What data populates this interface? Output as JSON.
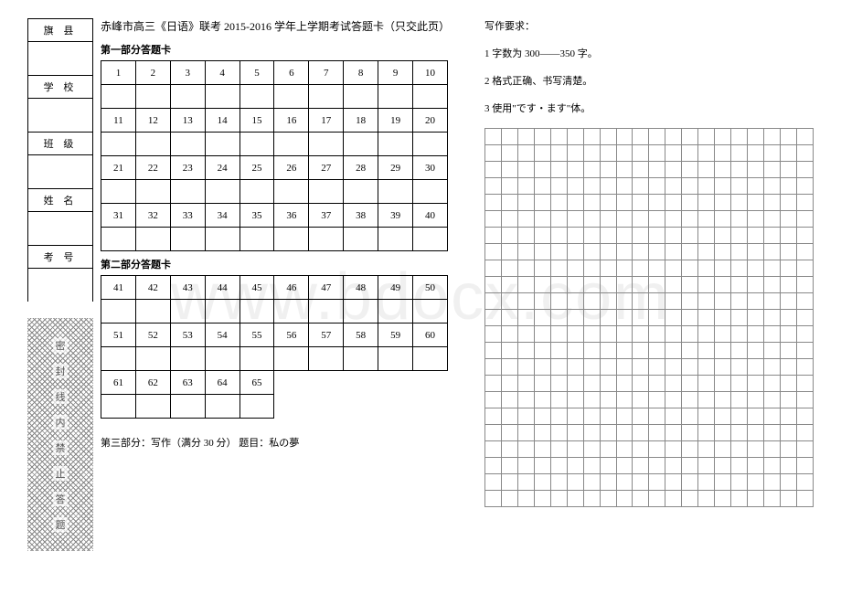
{
  "watermark": "www.bdocx.com",
  "info_labels": [
    "旗  县",
    "学  校",
    "班  级",
    "姓  名",
    "考  号"
  ],
  "seal_chars": [
    "密",
    "封",
    "线",
    "内",
    "禁",
    "止",
    "答",
    "题"
  ],
  "title": "赤峰市高三《日语》联考 2015-2016 学年上学期考试答题卡（只交此页）",
  "section1_label": "第一部分答题卡",
  "section2_label": "第二部分答题卡",
  "section1_numbers": [
    [
      "1",
      "2",
      "3",
      "4",
      "5",
      "6",
      "7",
      "8",
      "9",
      "10"
    ],
    [
      "11",
      "12",
      "13",
      "14",
      "15",
      "16",
      "17",
      "18",
      "19",
      "20"
    ],
    [
      "21",
      "22",
      "23",
      "24",
      "25",
      "26",
      "27",
      "28",
      "29",
      "30"
    ],
    [
      "31",
      "32",
      "33",
      "34",
      "35",
      "36",
      "37",
      "38",
      "39",
      "40"
    ]
  ],
  "section2_numbers": [
    [
      "41",
      "42",
      "43",
      "44",
      "45",
      "46",
      "47",
      "48",
      "49",
      "50"
    ],
    [
      "51",
      "52",
      "53",
      "54",
      "55",
      "56",
      "57",
      "58",
      "59",
      "60"
    ],
    [
      "61",
      "62",
      "63",
      "64",
      "65"
    ]
  ],
  "part3_text": "第三部分：写作（满分 30 分）   题目：私の夢",
  "req_title": "写作要求：",
  "req1": "1 字数为 300——350 字。",
  "req2": "2 格式正确、书写清楚。",
  "req3": "3 使用\"です・ます\"体。",
  "grid_rows": 23,
  "grid_cols": 20,
  "colors": {
    "border": "#000000",
    "grid_border": "#888888",
    "background": "#ffffff",
    "watermark": "#f0f0f0"
  }
}
